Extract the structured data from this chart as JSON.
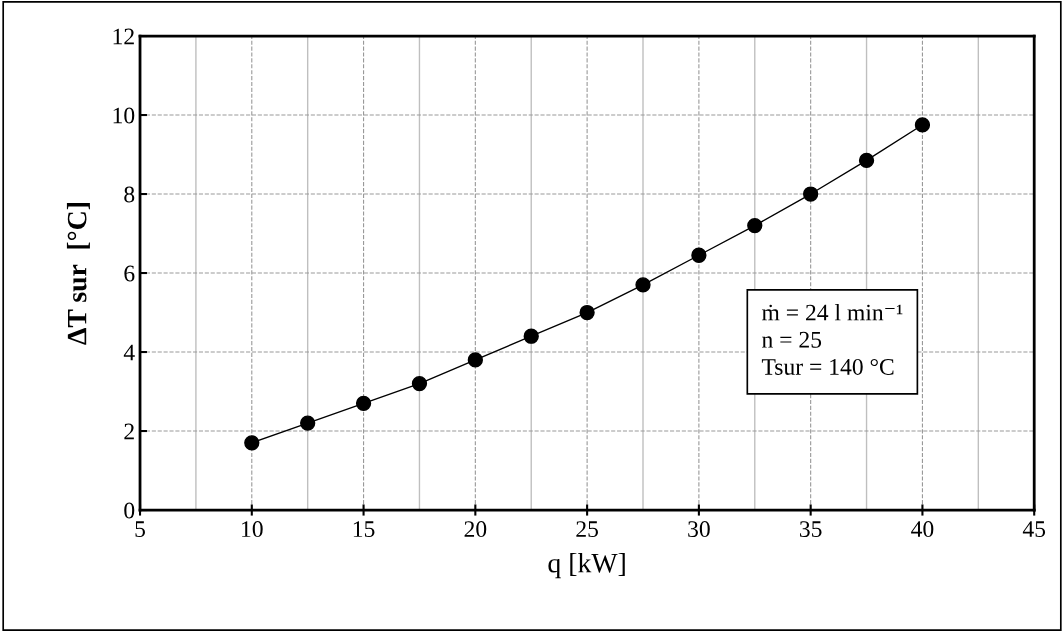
{
  "chart_data": {
    "type": "line",
    "xlabel": "q [kW]",
    "ylabel": "ΔT sur  [°C]",
    "x": [
      10,
      12.5,
      15,
      17.5,
      20,
      22.5,
      25,
      27.5,
      30,
      32.5,
      35,
      37.5,
      40
    ],
    "series": [
      {
        "color": "#000000",
        "values": [
          1.7,
          2.2,
          2.7,
          3.2,
          3.8,
          4.4,
          5.0,
          5.7,
          6.45,
          7.2,
          8.0,
          8.85,
          9.75
        ]
      }
    ],
    "xlim": [
      5,
      45
    ],
    "xticks": [
      5,
      10,
      15,
      20,
      25,
      30,
      35,
      40,
      45
    ],
    "ylim": [
      0,
      12
    ],
    "yticks": [
      0,
      2,
      4,
      6,
      8,
      10,
      12
    ],
    "grid": true,
    "marker": "circle",
    "line_style": "solid",
    "legend": false,
    "annotations": [
      "ṁ = 24 l min⁻¹",
      "n = 25",
      "Tsur = 140 °C"
    ]
  }
}
